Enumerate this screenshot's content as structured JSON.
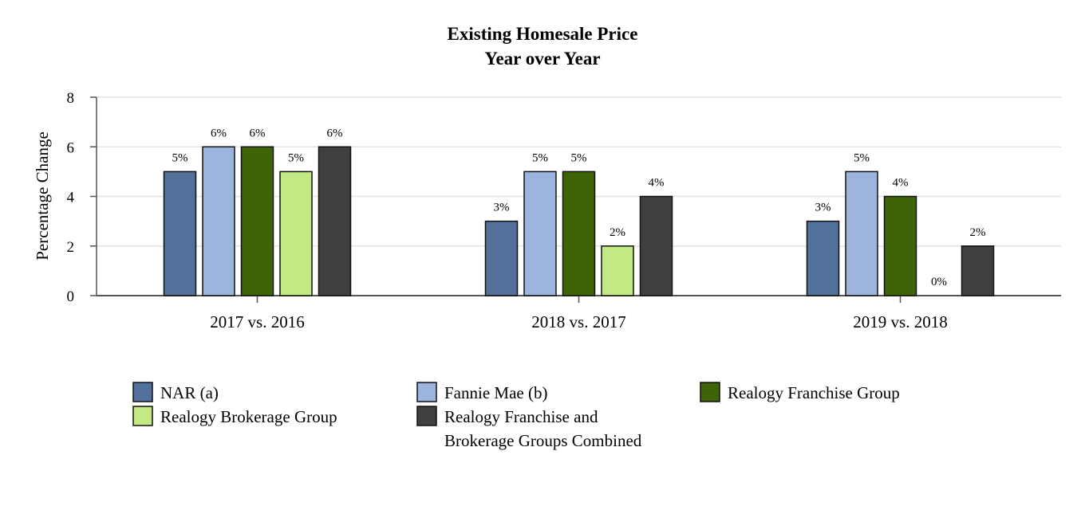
{
  "chart_data": {
    "type": "bar",
    "title": "Existing Homesale Price",
    "subtitle": "Year over Year",
    "xlabel": "",
    "ylabel": "Percentage Change",
    "ylim": [
      0,
      8
    ],
    "yticks": [
      0,
      2,
      4,
      6,
      8
    ],
    "grid": true,
    "legend_position": "bottom",
    "categories": [
      "2017 vs. 2016",
      "2018 vs. 2017",
      "2019 vs. 2018"
    ],
    "series": [
      {
        "name": "NAR (a)",
        "color": "#53709a",
        "values": [
          5,
          3,
          3
        ],
        "labels": [
          "5%",
          "3%",
          "3%"
        ]
      },
      {
        "name": "Fannie Mae (b)",
        "color": "#9db4de",
        "values": [
          6,
          5,
          5
        ],
        "labels": [
          "6%",
          "5%",
          "5%"
        ]
      },
      {
        "name": "Realogy Franchise Group",
        "color": "#3e6407",
        "values": [
          6,
          5,
          4
        ],
        "labels": [
          "6%",
          "5%",
          "4%"
        ]
      },
      {
        "name": "Realogy Brokerage Group",
        "color": "#c2e983",
        "values": [
          5,
          2,
          0
        ],
        "labels": [
          "5%",
          "2%",
          "0%"
        ]
      },
      {
        "name": "Realogy Franchise and",
        "name_line2": "Brokerage Groups Combined",
        "color": "#404040",
        "values": [
          6,
          4,
          2
        ],
        "labels": [
          "6%",
          "4%",
          "2%"
        ]
      }
    ]
  }
}
